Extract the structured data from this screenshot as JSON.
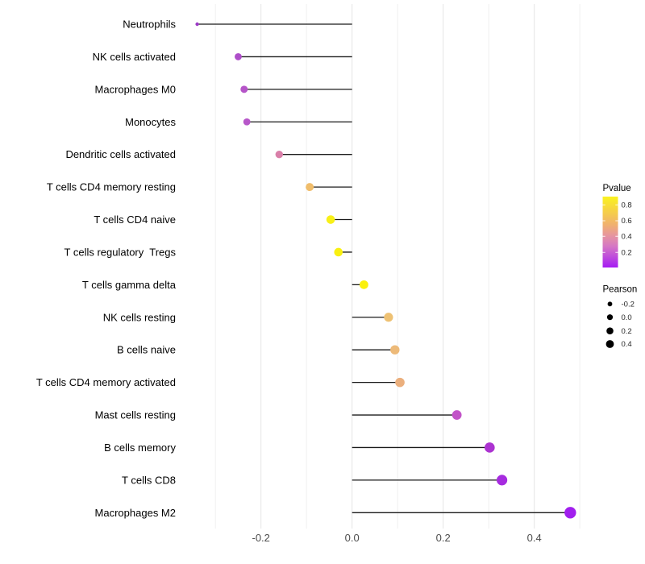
{
  "chart_data": {
    "type": "scatter",
    "variant": "horizontal-lollipop",
    "title": "",
    "xlabel": "",
    "ylabel": "",
    "xlim": [
      -0.378,
      0.52
    ],
    "grid": "vertical-only",
    "x_axis": {
      "major_tick_values": [
        -0.2,
        0.0,
        0.2,
        0.4
      ],
      "major_tick_labels": [
        "-0.2",
        "0.0",
        "0.2",
        "0.4"
      ],
      "minor_gridline_values": [
        -0.3,
        -0.1,
        0.1,
        0.3,
        0.5
      ]
    },
    "points": [
      {
        "category": "Neutrophils",
        "pearson": -0.34,
        "dot_color": "#9C3AC6",
        "dot_radius": 2.2
      },
      {
        "category": "NK cells activated",
        "pearson": -0.25,
        "dot_color": "#AE4EC9",
        "dot_radius": 4.4
      },
      {
        "category": "Macrophages M0",
        "pearson": -0.237,
        "dot_color": "#B554C8",
        "dot_radius": 4.5
      },
      {
        "category": "Monocytes",
        "pearson": -0.231,
        "dot_color": "#B757C9",
        "dot_radius": 4.4
      },
      {
        "category": "Dendritic cells activated",
        "pearson": -0.16,
        "dot_color": "#D980A9",
        "dot_radius": 4.7
      },
      {
        "category": "T cells CD4 memory resting",
        "pearson": -0.093,
        "dot_color": "#F0BD6B",
        "dot_radius": 5.0
      },
      {
        "category": "T cells CD4 naive",
        "pearson": -0.047,
        "dot_color": "#F8F018",
        "dot_radius": 5.3
      },
      {
        "category": "T cells regulatory  Tregs",
        "pearson": -0.03,
        "dot_color": "#F9F011",
        "dot_radius": 5.3
      },
      {
        "category": "T cells gamma delta",
        "pearson": 0.026,
        "dot_color": "#FAF00D",
        "dot_radius": 5.4
      },
      {
        "category": "NK cells resting",
        "pearson": 0.08,
        "dot_color": "#EEC173",
        "dot_radius": 5.6
      },
      {
        "category": "B cells naive",
        "pearson": 0.094,
        "dot_color": "#EDBA79",
        "dot_radius": 5.7
      },
      {
        "category": "T cells CD4 memory activated",
        "pearson": 0.105,
        "dot_color": "#EBAF7D",
        "dot_radius": 5.8
      },
      {
        "category": "Mast cells resting",
        "pearson": 0.23,
        "dot_color": "#C254C8",
        "dot_radius": 5.9
      },
      {
        "category": "B cells memory",
        "pearson": 0.302,
        "dot_color": "#AC33D1",
        "dot_radius": 6.3
      },
      {
        "category": "T cells CD8",
        "pearson": 0.329,
        "dot_color": "#A62BDF",
        "dot_radius": 6.6
      },
      {
        "category": "Macrophages M2",
        "pearson": 0.479,
        "dot_color": "#A11FEE",
        "dot_radius": 7.2
      }
    ],
    "legend_pvalue": {
      "title": "Pvalue",
      "tick_labels": [
        "0.8",
        "0.6",
        "0.4",
        "0.2"
      ],
      "tick_values": [
        0.8,
        0.6,
        0.4,
        0.2
      ],
      "gradient_top_to_bottom": [
        {
          "offset": 0,
          "color": "#FAF31F"
        },
        {
          "offset": 0.2,
          "color": "#F6D145"
        },
        {
          "offset": 0.4,
          "color": "#F0B070"
        },
        {
          "offset": 0.55,
          "color": "#E695A0"
        },
        {
          "offset": 0.7,
          "color": "#D577C4"
        },
        {
          "offset": 0.85,
          "color": "#BE4BDC"
        },
        {
          "offset": 1.0,
          "color": "#A51BF3"
        }
      ]
    },
    "legend_pearson": {
      "title": "Pearson",
      "entries": [
        {
          "label": "-0.2",
          "radius": 2.9
        },
        {
          "label": "0.0",
          "radius": 3.6
        },
        {
          "label": "0.2",
          "radius": 4.3
        },
        {
          "label": "0.4",
          "radius": 4.9
        }
      ],
      "dot_color": "#000000"
    },
    "colors": {
      "stem": "#1A1A1A",
      "grid_major": "#E4E4E4",
      "grid_minor": "#F1F1F1",
      "axis_tick_label": "#4D4D4D",
      "category_label": "#000000",
      "legend_title": "#000000",
      "legend_label": "#262626",
      "background": "#FFFFFF"
    }
  }
}
